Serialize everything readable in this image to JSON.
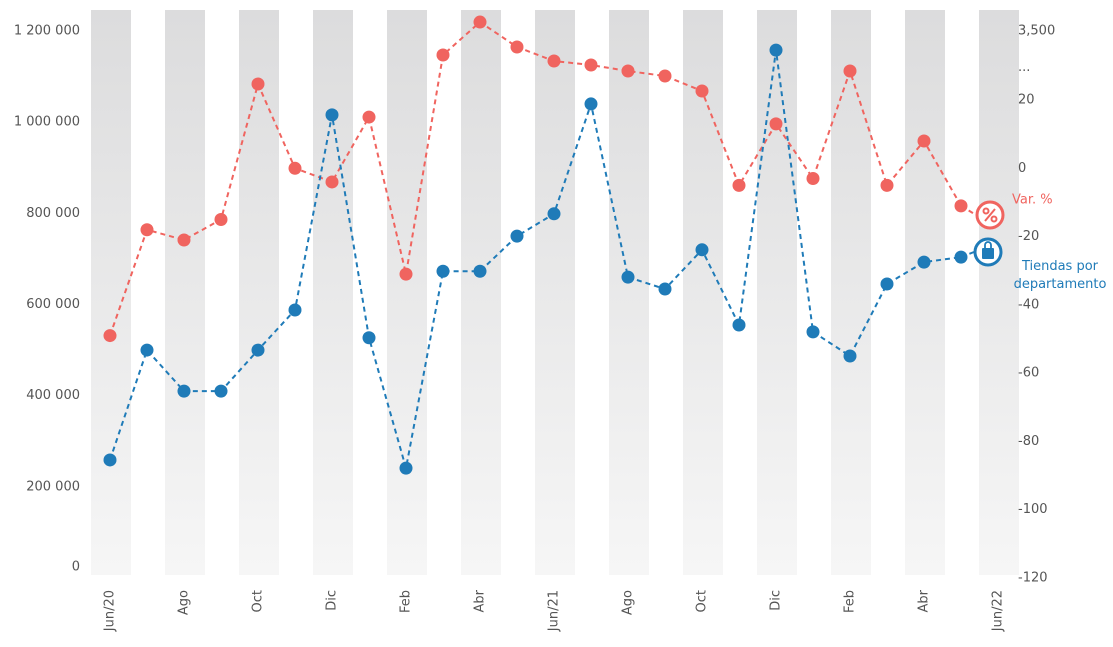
{
  "chart_data": {
    "type": "line",
    "categories": [
      "Jun/20",
      null,
      "Ago",
      null,
      "Oct",
      null,
      "Dic",
      null,
      "Feb",
      null,
      "Abr",
      null,
      "Jun/21",
      null,
      "Ago",
      null,
      "Oct",
      null,
      "Dic",
      null,
      "Feb",
      null,
      "Abr",
      null,
      "Jun/22"
    ],
    "series": [
      {
        "name": "Var. %",
        "color": "#f0645f",
        "axis": "y2",
        "values": [
          -49,
          -18,
          -21,
          -15,
          827,
          0,
          -4,
          15,
          -31,
          2290,
          3951,
          2693,
          1986,
          1785,
          1482,
          1230,
          474,
          -5,
          13,
          -3,
          1482,
          -5,
          8,
          -11,
          null
        ]
      },
      {
        "name": "Tiendas por departamento",
        "color": "#1f7bb8",
        "values": [
          259000,
          500000,
          410000,
          410000,
          500000,
          588000,
          1016000,
          527000,
          241000,
          673000,
          673000,
          750000,
          799000,
          1040000,
          660000,
          634000,
          720000,
          555000,
          1158000,
          540000,
          487000,
          645000,
          693000,
          704000,
          null
        ]
      }
    ],
    "ylim": [
      0,
      1200000
    ],
    "yticks": [
      0,
      {
        "value": 200000,
        "label": "200 000"
      },
      {
        "value": 400000,
        "label": "400 000"
      },
      {
        "value": 600000,
        "label": "600 000"
      },
      {
        "value": 800000,
        "label": "800 000"
      },
      {
        "value": 1000000,
        "label": "1 000 000"
      },
      {
        "value": 1200000,
        "label": "1 200 000"
      }
    ],
    "y2lim": [
      -120,
      3500
    ],
    "y2break": 20,
    "y2_break_label": "...",
    "y2ticks": [
      -120,
      -100,
      -80,
      -60,
      -40,
      -20,
      0,
      20,
      {
        "value": 3500,
        "label": "3,500"
      }
    ],
    "grid": false
  }
}
